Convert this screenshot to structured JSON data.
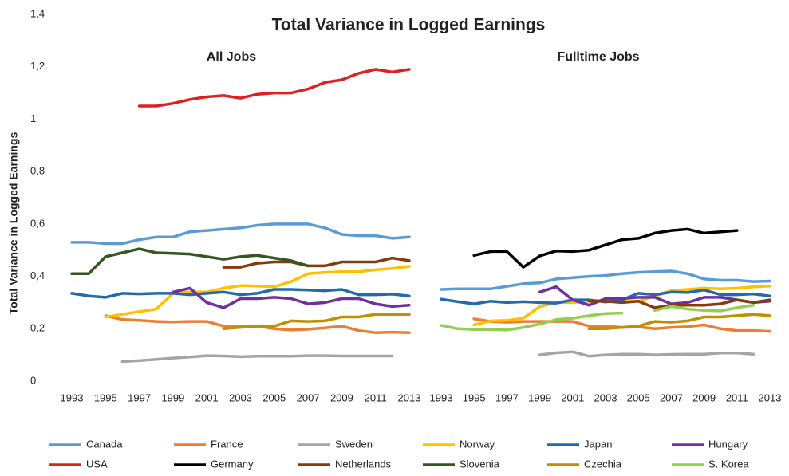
{
  "chart_data": {
    "type": "line",
    "title": "Total Variance in Logged Earnings",
    "ylabel": "Total Variance in Logged Earnings",
    "ylim": [
      0,
      1.4
    ],
    "yticks": [
      0,
      {
        "value": 0.2,
        "label": "0,2"
      },
      {
        "value": 0.4,
        "label": "0,4"
      },
      {
        "value": 0.6,
        "label": "0,6"
      },
      {
        "value": 0.8,
        "label": "0,8"
      },
      1,
      {
        "value": 1.2,
        "label": "1,2"
      },
      {
        "value": 1.4,
        "label": "1,4"
      }
    ],
    "x": [
      1993,
      1994,
      1995,
      1996,
      1997,
      1998,
      1999,
      2000,
      2001,
      2002,
      2003,
      2004,
      2005,
      2006,
      2007,
      2008,
      2009,
      2010,
      2011,
      2012,
      2013
    ],
    "xlim": [
      1993,
      2013
    ],
    "xticks": [
      1993,
      1995,
      1997,
      1999,
      2001,
      2003,
      2005,
      2007,
      2009,
      2011,
      2013
    ],
    "legend": [
      {
        "name": "Canada",
        "color": "#5b9bd5"
      },
      {
        "name": "France",
        "color": "#ed7d31"
      },
      {
        "name": "Sweden",
        "color": "#a5a5a5"
      },
      {
        "name": "Norway",
        "color": "#ffc000"
      },
      {
        "name": "Japan",
        "color": "#1f6bb0"
      },
      {
        "name": "Hungary",
        "color": "#7030a0"
      },
      {
        "name": "USA",
        "color": "#e02020"
      },
      {
        "name": "Germany",
        "color": "#000000"
      },
      {
        "name": "Netherlands",
        "color": "#843c0c"
      },
      {
        "name": "Slovenia",
        "color": "#375623"
      },
      {
        "name": "Czechia",
        "color": "#bf9000"
      },
      {
        "name": "S. Korea",
        "color": "#92d050"
      }
    ],
    "panels": [
      {
        "title": "All Jobs",
        "series": [
          {
            "values": [
              0.53,
              0.53,
              0.525,
              0.525,
              0.54,
              0.55,
              0.55,
              0.57,
              0.575,
              0.58,
              0.585,
              0.595,
              0.6,
              0.6,
              0.6,
              0.585,
              0.56,
              0.555,
              0.555,
              0.545,
              0.55
            ]
          },
          {
            "values": [
              null,
              null,
              0.25,
              0.235,
              0.232,
              0.228,
              0.226,
              0.228,
              0.228,
              0.21,
              0.21,
              0.21,
              0.2,
              0.195,
              0.198,
              0.203,
              0.21,
              0.193,
              0.185,
              0.187,
              0.185
            ]
          },
          {
            "values": [
              null,
              null,
              null,
              0.075,
              0.078,
              0.083,
              0.088,
              0.092,
              0.097,
              0.096,
              0.093,
              0.095,
              0.095,
              0.095,
              0.097,
              0.097,
              0.096,
              0.096,
              0.096,
              0.096,
              null
            ]
          },
          {
            "values": [
              null,
              null,
              0.245,
              0.255,
              0.265,
              0.275,
              0.335,
              0.34,
              0.34,
              0.355,
              0.365,
              0.363,
              0.36,
              0.38,
              0.41,
              0.415,
              0.418,
              0.418,
              0.425,
              0.43,
              0.438
            ]
          },
          {
            "values": [
              0.335,
              0.325,
              0.32,
              0.335,
              0.333,
              0.335,
              0.335,
              0.33,
              0.335,
              0.34,
              0.33,
              0.335,
              0.35,
              0.35,
              0.348,
              0.345,
              0.35,
              0.33,
              0.33,
              0.332,
              0.325
            ]
          },
          {
            "values": [
              null,
              null,
              null,
              null,
              null,
              null,
              0.34,
              0.355,
              0.3,
              0.28,
              0.315,
              0.315,
              0.32,
              0.315,
              0.295,
              0.3,
              0.315,
              0.315,
              0.295,
              0.285,
              0.29
            ]
          },
          {
            "values": [
              null,
              null,
              null,
              null,
              1.05,
              1.05,
              1.06,
              1.075,
              1.085,
              1.09,
              1.08,
              1.095,
              1.1,
              1.1,
              1.115,
              1.14,
              1.15,
              1.175,
              1.19,
              1.18,
              1.19
            ]
          },
          {
            "values": [
              null,
              null,
              null,
              null,
              null,
              null,
              null,
              null,
              null,
              null,
              null,
              null,
              null,
              null,
              null,
              null,
              null,
              null,
              null,
              null,
              null
            ]
          },
          {
            "values": [
              null,
              null,
              null,
              null,
              null,
              null,
              null,
              null,
              null,
              0.435,
              0.435,
              0.45,
              0.455,
              0.455,
              0.44,
              0.44,
              0.455,
              0.455,
              0.455,
              0.47,
              0.46
            ]
          },
          {
            "values": [
              0.41,
              0.41,
              0.475,
              0.49,
              0.505,
              0.49,
              0.488,
              0.485,
              0.475,
              0.465,
              0.475,
              0.48,
              0.47,
              0.46,
              0.44,
              null,
              null,
              null,
              null,
              null,
              null
            ]
          },
          {
            "values": [
              null,
              null,
              null,
              null,
              null,
              null,
              null,
              null,
              null,
              0.2,
              0.205,
              0.21,
              0.21,
              0.23,
              0.228,
              0.23,
              0.245,
              0.245,
              0.255,
              0.255,
              0.255
            ]
          },
          {
            "values": [
              null,
              null,
              null,
              null,
              null,
              null,
              null,
              null,
              null,
              null,
              null,
              null,
              null,
              null,
              null,
              null,
              null,
              null,
              null,
              null,
              null
            ]
          }
        ]
      },
      {
        "title": "Fulltime Jobs",
        "series": [
          {
            "values": [
              0.35,
              0.352,
              0.352,
              0.352,
              0.362,
              0.372,
              0.375,
              0.39,
              0.395,
              0.4,
              0.403,
              0.41,
              0.415,
              0.418,
              0.42,
              0.41,
              0.39,
              0.385,
              0.385,
              0.38,
              0.382
            ]
          },
          {
            "values": [
              null,
              null,
              0.238,
              0.228,
              0.225,
              0.228,
              0.228,
              0.228,
              0.228,
              0.21,
              0.21,
              0.205,
              0.207,
              0.2,
              0.205,
              0.208,
              0.215,
              0.2,
              0.193,
              0.193,
              0.19
            ]
          },
          {
            "values": [
              null,
              null,
              null,
              null,
              null,
              null,
              0.1,
              0.108,
              0.112,
              0.095,
              0.1,
              0.103,
              0.103,
              0.1,
              0.102,
              0.103,
              0.103,
              0.107,
              0.107,
              0.103,
              null
            ]
          },
          {
            "values": [
              null,
              null,
              0.215,
              0.23,
              0.232,
              0.24,
              0.285,
              0.3,
              0.3,
              0.305,
              0.31,
              0.305,
              0.305,
              0.325,
              0.345,
              0.35,
              0.355,
              0.352,
              0.355,
              0.36,
              0.363
            ]
          },
          {
            "values": [
              0.313,
              0.303,
              0.295,
              0.305,
              0.3,
              0.303,
              0.3,
              0.298,
              0.31,
              0.31,
              0.302,
              0.31,
              0.335,
              0.33,
              0.34,
              0.338,
              0.348,
              0.33,
              0.33,
              0.333,
              0.325
            ]
          },
          {
            "values": [
              null,
              null,
              null,
              null,
              null,
              null,
              0.34,
              0.36,
              0.31,
              0.29,
              0.315,
              0.315,
              0.32,
              0.32,
              0.295,
              0.3,
              0.32,
              0.32,
              0.31,
              0.3,
              0.305
            ]
          },
          {
            "values": [
              null,
              null,
              null,
              null,
              null,
              null,
              null,
              null,
              null,
              null,
              null,
              null,
              null,
              null,
              null,
              null,
              null,
              null,
              null,
              null,
              null
            ]
          },
          {
            "values": [
              null,
              null,
              0.48,
              0.495,
              0.495,
              0.435,
              0.478,
              0.497,
              0.495,
              0.5,
              0.52,
              0.54,
              0.545,
              0.565,
              0.575,
              0.58,
              0.565,
              0.57,
              0.575,
              null,
              null
            ]
          },
          {
            "values": [
              null,
              null,
              null,
              null,
              null,
              null,
              null,
              null,
              null,
              0.305,
              0.305,
              0.3,
              0.305,
              0.28,
              0.29,
              0.29,
              0.29,
              0.295,
              0.31,
              0.3,
              0.31
            ]
          },
          {
            "values": [
              null,
              null,
              null,
              null,
              null,
              null,
              null,
              null,
              null,
              null,
              null,
              null,
              null,
              null,
              null,
              null,
              null,
              null,
              null,
              null,
              null
            ]
          },
          {
            "values": [
              null,
              null,
              null,
              null,
              null,
              null,
              null,
              null,
              null,
              0.2,
              0.2,
              0.205,
              0.21,
              0.228,
              0.225,
              0.23,
              0.245,
              0.245,
              0.25,
              0.255,
              0.25
            ]
          },
          {
            "values": [
              0.213,
              0.2,
              0.197,
              0.197,
              0.195,
              0.205,
              0.218,
              0.235,
              0.24,
              0.25,
              0.258,
              0.26,
              null,
              0.27,
              0.285,
              0.275,
              0.27,
              0.268,
              0.28,
              0.29,
              null
            ]
          }
        ]
      }
    ]
  }
}
